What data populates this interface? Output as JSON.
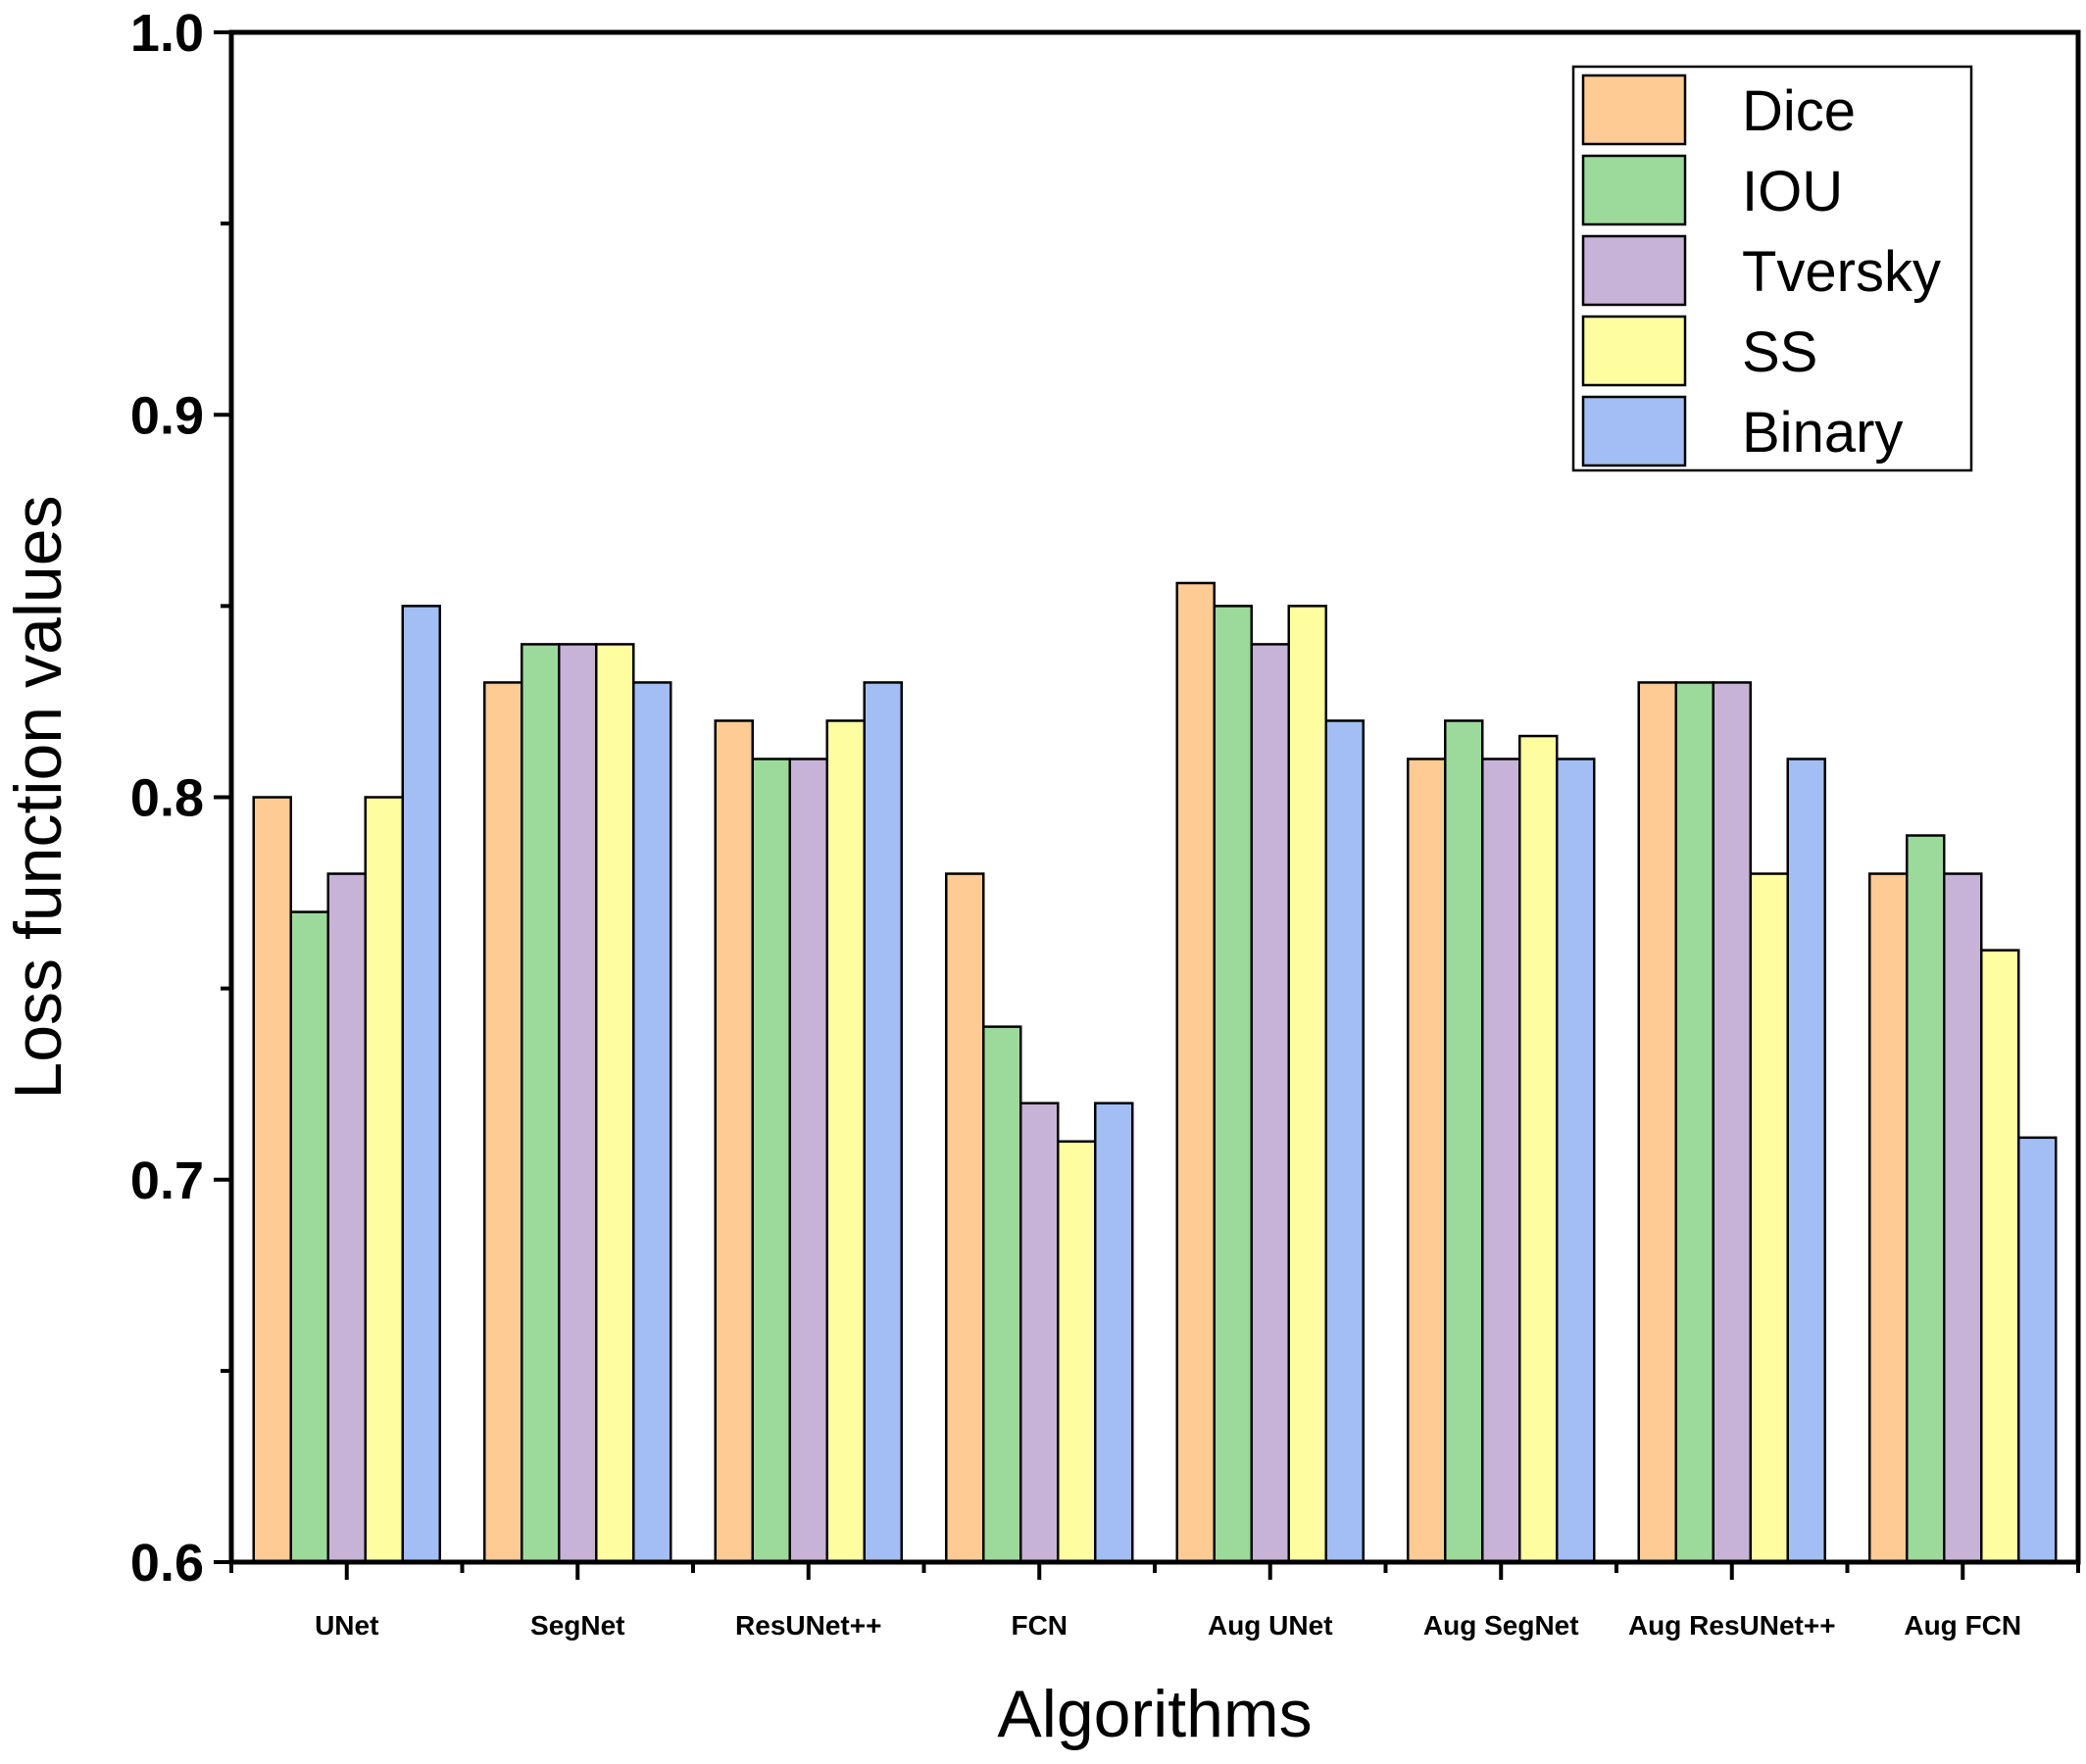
{
  "chart_data": {
    "type": "bar",
    "title": "",
    "xlabel": "Algorithms",
    "ylabel": "Loss function values",
    "ylim": [
      0.6,
      1.0
    ],
    "yticks": [
      "0.6",
      "0.7",
      "0.8",
      "0.9",
      "1.0"
    ],
    "grid": false,
    "legend_position": "top-right",
    "categories": [
      "UNet",
      "SegNet",
      "ResUNet++",
      "FCN",
      "Aug UNet",
      "Aug SegNet",
      "Aug ResUNet++",
      "Aug FCN"
    ],
    "series": [
      {
        "name": "Dice",
        "color": "#FDCB93",
        "values": [
          0.8,
          0.83,
          0.82,
          0.78,
          0.856,
          0.81,
          0.83,
          0.78
        ]
      },
      {
        "name": "IOU",
        "color": "#9CDA9C",
        "values": [
          0.77,
          0.84,
          0.81,
          0.74,
          0.85,
          0.82,
          0.83,
          0.79
        ]
      },
      {
        "name": "Tversky",
        "color": "#C7B3D8",
        "values": [
          0.78,
          0.84,
          0.81,
          0.72,
          0.84,
          0.81,
          0.83,
          0.78
        ]
      },
      {
        "name": "SS",
        "color": "#FEFEA1",
        "values": [
          0.8,
          0.84,
          0.82,
          0.71,
          0.85,
          0.816,
          0.78,
          0.76
        ]
      },
      {
        "name": "Binary",
        "color": "#A2BEF4",
        "values": [
          0.85,
          0.83,
          0.83,
          0.72,
          0.82,
          0.81,
          0.81,
          0.711
        ]
      }
    ]
  }
}
